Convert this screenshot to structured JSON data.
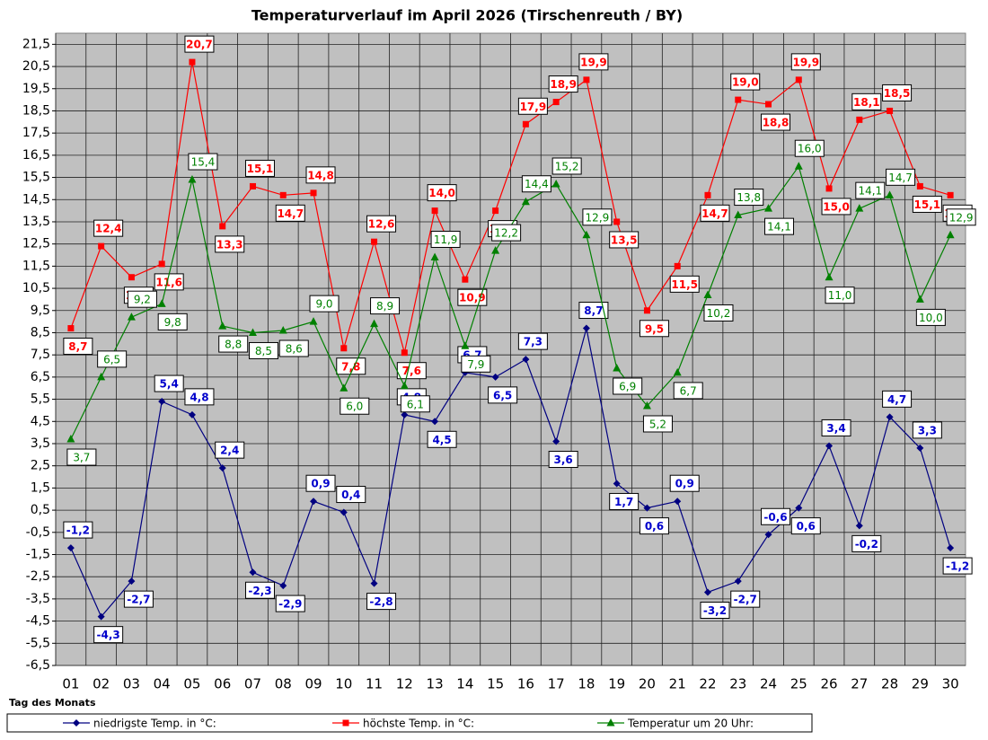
{
  "chart_data": {
    "type": "line",
    "title": "Temperaturverlauf im April 2026 (Tirschenreuth / BY)",
    "x_label": "Tag des Monats",
    "categories": [
      "01",
      "02",
      "03",
      "04",
      "05",
      "06",
      "07",
      "08",
      "09",
      "10",
      "11",
      "12",
      "13",
      "14",
      "15",
      "16",
      "17",
      "18",
      "19",
      "20",
      "21",
      "22",
      "23",
      "24",
      "25",
      "26",
      "27",
      "28",
      "29",
      "30"
    ],
    "series": [
      {
        "name": "niedrigste Temp. in °C:",
        "color": "#000080",
        "marker": "diamond",
        "values": [
          -1.2,
          -4.3,
          -2.7,
          5.4,
          4.8,
          2.4,
          -2.3,
          -2.9,
          0.9,
          0.4,
          -2.8,
          4.8,
          4.5,
          6.7,
          6.5,
          7.3,
          3.6,
          8.7,
          1.7,
          0.6,
          0.9,
          -3.2,
          -2.7,
          -0.6,
          0.6,
          3.4,
          -0.2,
          4.7,
          3.3,
          -1.2
        ],
        "value_labels": [
          "-1,2",
          "-4,3",
          "-2,7",
          "5,4",
          "4,8",
          "2,4",
          "-2,3",
          "-2,9",
          "0,9",
          "0,4",
          "-2,8",
          "4,8",
          "4,5",
          "6,7",
          "6,5",
          "7,3",
          "3,6",
          "8,7",
          "1,7",
          "0,6",
          "0,9",
          "-3,2",
          "-2,7",
          "-0,6",
          "0,6",
          "3,4",
          "-0,2",
          "4,7",
          "3,3",
          "-1,2"
        ]
      },
      {
        "name": "höchste Temp. in °C:",
        "color": "#ff0000",
        "marker": "square",
        "values": [
          8.7,
          12.4,
          11.0,
          11.6,
          20.7,
          13.3,
          15.1,
          14.7,
          14.8,
          7.8,
          12.6,
          7.6,
          14.0,
          10.9,
          14.0,
          17.9,
          18.9,
          19.9,
          13.5,
          9.5,
          11.5,
          14.7,
          19.0,
          18.8,
          19.9,
          15.0,
          18.1,
          18.5,
          15.1,
          14.7
        ],
        "value_labels": [
          "8,7",
          "12,4",
          "11,0",
          "11,6",
          "20,7",
          "13,3",
          "15,1",
          "14,7",
          "14,8",
          "7,8",
          "12,6",
          "7,6",
          "14,0",
          "10,9",
          "14,0",
          "17,9",
          "18,9",
          "19,9",
          "13,5",
          "9,5",
          "11,5",
          "14,7",
          "19,0",
          "18,8",
          "19,9",
          "15,0",
          "18,1",
          "18,5",
          "15,1",
          "14,7"
        ]
      },
      {
        "name": "Temperatur um 20 Uhr:",
        "color": "#008000",
        "marker": "triangle",
        "values": [
          3.7,
          6.5,
          9.2,
          9.8,
          15.4,
          8.8,
          8.5,
          8.6,
          9.0,
          6.0,
          8.9,
          6.1,
          11.9,
          7.9,
          12.2,
          14.4,
          15.2,
          12.9,
          6.9,
          5.2,
          6.7,
          10.2,
          13.8,
          14.1,
          16.0,
          11.0,
          14.1,
          14.7,
          10.0,
          12.9
        ],
        "value_labels": [
          "3,7",
          "6,5",
          "9,2",
          "9,8",
          "15,4",
          "8,8",
          "8,5",
          "8,6",
          "9,0",
          "6,0",
          "8,9",
          "6,1",
          "11,9",
          "7,9",
          "12,2",
          "14,4",
          "15,2",
          "12,9",
          "6,9",
          "5,2",
          "6,7",
          "10,2",
          "13,8",
          "14,1",
          "16,0",
          "11,0",
          "14,1",
          "14,7",
          "10,0",
          "12,9"
        ]
      }
    ],
    "ylim": [
      -6.5,
      22
    ],
    "yticks": [
      {
        "value": -6.5,
        "label": "-6,5"
      },
      {
        "value": -5.5,
        "label": "-5,5"
      },
      {
        "value": -4.5,
        "label": "-4,5"
      },
      {
        "value": -3.5,
        "label": "-3,5"
      },
      {
        "value": -2.5,
        "label": "-2,5"
      },
      {
        "value": -1.5,
        "label": "-1,5"
      },
      {
        "value": -0.5,
        "label": "-0,5"
      },
      {
        "value": 0.5,
        "label": "0,5"
      },
      {
        "value": 1.5,
        "label": "1,5"
      },
      {
        "value": 2.5,
        "label": "2,5"
      },
      {
        "value": 3.5,
        "label": "3,5"
      },
      {
        "value": 4.5,
        "label": "4,5"
      },
      {
        "value": 5.5,
        "label": "5,5"
      },
      {
        "value": 6.5,
        "label": "6,5"
      },
      {
        "value": 7.5,
        "label": "7,5"
      },
      {
        "value": 8.5,
        "label": "8,5"
      },
      {
        "value": 9.5,
        "label": "9,5"
      },
      {
        "value": 10.5,
        "label": "10,5"
      },
      {
        "value": 11.5,
        "label": "11,5"
      },
      {
        "value": 12.5,
        "label": "12,5"
      },
      {
        "value": 13.5,
        "label": "13,5"
      },
      {
        "value": 14.5,
        "label": "14,5"
      },
      {
        "value": 15.5,
        "label": "15,5"
      },
      {
        "value": 16.5,
        "label": "16,5"
      },
      {
        "value": 17.5,
        "label": "17,5"
      },
      {
        "value": 18.5,
        "label": "18,5"
      },
      {
        "value": 19.5,
        "label": "19,5"
      },
      {
        "value": 20.5,
        "label": "20,5"
      },
      {
        "value": 21.5,
        "label": "21,5"
      }
    ],
    "grid": true,
    "legend": "bottom"
  }
}
